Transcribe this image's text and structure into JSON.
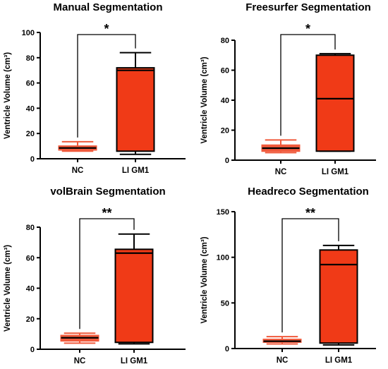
{
  "chart_data": [
    {
      "type": "box",
      "title": "Manual Segmentation",
      "ylabel": "Ventricle Volume (cm³)",
      "ylim": [
        0,
        100
      ],
      "yticks": [
        0,
        20,
        40,
        60,
        80,
        100
      ],
      "categories": [
        "NC",
        "LI GM1"
      ],
      "boxes": [
        {
          "category": "NC",
          "min": 6,
          "q1": 7,
          "median": 8.5,
          "q3": 10,
          "max": 13.5
        },
        {
          "category": "LI GM1",
          "min": 3.5,
          "q1": 6,
          "median": 70,
          "q3": 72,
          "max": 84
        }
      ],
      "significance": "*",
      "fill_color": "#f03a17",
      "stroke_color": "#000000"
    },
    {
      "type": "box",
      "title": "Freesurfer Segmentation",
      "ylabel": "Ventricle Volume (cm³)",
      "ylim": [
        0,
        80
      ],
      "yticks": [
        0,
        20,
        40,
        60,
        80
      ],
      "categories": [
        "NC",
        "LI GM1"
      ],
      "boxes": [
        {
          "category": "NC",
          "min": 5,
          "q1": 6,
          "median": 8,
          "q3": 10,
          "max": 13.5
        },
        {
          "category": "LI GM1",
          "min": 6,
          "q1": 6,
          "median": 41,
          "q3": 70,
          "max": 71
        }
      ],
      "significance": "*",
      "fill_color": "#f03a17",
      "stroke_color": "#000000"
    },
    {
      "type": "box",
      "title": "volBrain Segmentation",
      "ylabel": "Ventricle Volume (cm³)",
      "ylim": [
        0,
        80
      ],
      "yticks": [
        0,
        20,
        40,
        60,
        80
      ],
      "categories": [
        "NC",
        "LI GM1"
      ],
      "boxes": [
        {
          "category": "NC",
          "min": 4,
          "q1": 5.5,
          "median": 7.5,
          "q3": 9,
          "max": 10.5
        },
        {
          "category": "LI GM1",
          "min": 3.5,
          "q1": 4.5,
          "median": 63,
          "q3": 65.5,
          "max": 75.5
        }
      ],
      "significance": "**",
      "fill_color": "#f03a17",
      "stroke_color": "#000000"
    },
    {
      "type": "box",
      "title": "Headreco Segmentation",
      "ylabel": "Ventricle Volume (cm³)",
      "ylim": [
        0,
        150
      ],
      "yticks": [
        0,
        50,
        100,
        150
      ],
      "categories": [
        "NC",
        "LI GM1"
      ],
      "boxes": [
        {
          "category": "NC",
          "min": 5,
          "q1": 7,
          "median": 8,
          "q3": 10,
          "max": 13
        },
        {
          "category": "LI GM1",
          "min": 4,
          "q1": 6,
          "median": 92,
          "q3": 108,
          "max": 113
        }
      ],
      "significance": "**",
      "fill_color": "#f03a17",
      "stroke_color": "#000000"
    }
  ]
}
